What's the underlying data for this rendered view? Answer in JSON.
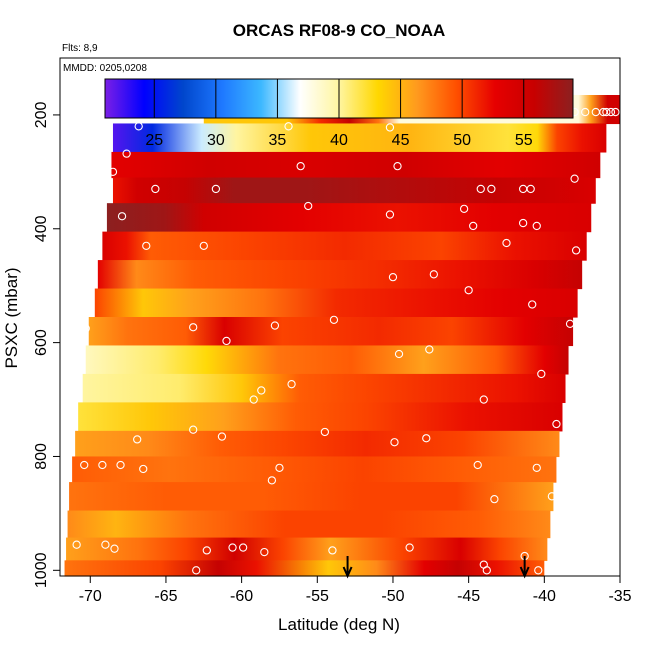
{
  "chart_data": {
    "type": "heatmap",
    "title": "ORCAS RF08-9 CO_NOAA",
    "flights_label": "Flts: 8,9",
    "dates_label": "MMDD: 0205,0208",
    "xlabel": "Latitude (deg N)",
    "ylabel": "PSXC (mbar)",
    "xlim": [
      -72.0,
      -35.0
    ],
    "ylim": [
      1010,
      100
    ],
    "x_ticks": [
      -70,
      -65,
      -60,
      -55,
      -50,
      -45,
      -40,
      -35
    ],
    "x_tick_labels": [
      "-70",
      "-65",
      "-60",
      "-55",
      "-50",
      "-45",
      "-40",
      "-35"
    ],
    "y_ticks": [
      200,
      400,
      600,
      800,
      1000
    ],
    "y_tick_labels": [
      "200",
      "400",
      "600",
      "800",
      "1000"
    ],
    "colorbar": {
      "min": 21,
      "max": 59,
      "ticks": [
        25,
        30,
        35,
        40,
        45,
        50,
        55
      ],
      "tick_labels": [
        "25",
        "30",
        "35",
        "40",
        "45",
        "50",
        "55"
      ],
      "colors": [
        "#7b1fe6",
        "#0000ff",
        "#0046cc",
        "#1e78ff",
        "#3cb8ff",
        "#ffffff",
        "#fff5a0",
        "#ffd700",
        "#ff9a1e",
        "#ff5000",
        "#e60000",
        "#c80000",
        "#8c2020"
      ]
    },
    "markers_latitude": [
      -53.0,
      -41.3
    ],
    "bands": [
      {
        "p": 190,
        "start": -62.5,
        "end": -34.9,
        "stops": [
          [
            0,
            44
          ],
          [
            0.2,
            44
          ],
          [
            0.28,
            51
          ],
          [
            0.35,
            56
          ],
          [
            0.42,
            48
          ],
          [
            0.47,
            38
          ],
          [
            0.62,
            38
          ],
          [
            0.9,
            38
          ],
          [
            0.93,
            46
          ],
          [
            0.97,
            55
          ],
          [
            1,
            55
          ]
        ]
      },
      {
        "p": 240,
        "start": -68.5,
        "end": -35.9,
        "stops": [
          [
            0,
            22
          ],
          [
            0.08,
            26
          ],
          [
            0.18,
            36
          ],
          [
            0.25,
            40
          ],
          [
            0.4,
            44
          ],
          [
            0.6,
            45
          ],
          [
            0.8,
            42
          ],
          [
            0.86,
            43
          ],
          [
            0.9,
            50
          ],
          [
            0.95,
            52
          ],
          [
            1,
            54
          ]
        ]
      },
      {
        "p": 290,
        "start": -68.6,
        "end": -36.3,
        "stops": [
          [
            0,
            53
          ],
          [
            0.2,
            55
          ],
          [
            0.4,
            54
          ],
          [
            0.6,
            55
          ],
          [
            0.8,
            53
          ],
          [
            1,
            55
          ]
        ]
      },
      {
        "p": 330,
        "start": -68.5,
        "end": -36.6,
        "stops": [
          [
            0,
            52
          ],
          [
            0.05,
            55
          ],
          [
            0.15,
            56
          ],
          [
            0.25,
            58
          ],
          [
            0.4,
            58
          ],
          [
            0.6,
            57
          ],
          [
            0.8,
            56
          ],
          [
            1,
            54
          ]
        ]
      },
      {
        "p": 380,
        "start": -68.9,
        "end": -36.9,
        "stops": [
          [
            0,
            59
          ],
          [
            0.12,
            58
          ],
          [
            0.2,
            55
          ],
          [
            0.4,
            53
          ],
          [
            0.6,
            52
          ],
          [
            0.8,
            53
          ],
          [
            1,
            54
          ]
        ]
      },
      {
        "p": 430,
        "start": -69.2,
        "end": -37.2,
        "stops": [
          [
            0,
            54
          ],
          [
            0.05,
            52
          ],
          [
            0.1,
            49
          ],
          [
            0.3,
            50
          ],
          [
            0.5,
            51
          ],
          [
            0.7,
            50
          ],
          [
            0.85,
            52
          ],
          [
            1,
            54
          ]
        ]
      },
      {
        "p": 480,
        "start": -69.5,
        "end": -37.5,
        "stops": [
          [
            0,
            53
          ],
          [
            0.08,
            47
          ],
          [
            0.2,
            49
          ],
          [
            0.4,
            50
          ],
          [
            0.6,
            51
          ],
          [
            0.75,
            52
          ],
          [
            0.9,
            54
          ],
          [
            1,
            56
          ]
        ]
      },
      {
        "p": 530,
        "start": -69.7,
        "end": -37.8,
        "stops": [
          [
            0,
            50
          ],
          [
            0.1,
            44
          ],
          [
            0.2,
            46
          ],
          [
            0.35,
            48
          ],
          [
            0.5,
            51
          ],
          [
            0.7,
            52
          ],
          [
            0.85,
            53
          ],
          [
            1,
            54
          ]
        ]
      },
      {
        "p": 580,
        "start": -70.1,
        "end": -38.1,
        "stops": [
          [
            0,
            46
          ],
          [
            0.08,
            48
          ],
          [
            0.2,
            49
          ],
          [
            0.28,
            54
          ],
          [
            0.4,
            50
          ],
          [
            0.6,
            51
          ],
          [
            0.75,
            50
          ],
          [
            0.9,
            53
          ],
          [
            1,
            56
          ]
        ]
      },
      {
        "p": 630,
        "start": -70.3,
        "end": -38.4,
        "stops": [
          [
            0,
            39
          ],
          [
            0.15,
            41
          ],
          [
            0.25,
            43
          ],
          [
            0.4,
            48
          ],
          [
            0.55,
            49
          ],
          [
            0.7,
            46
          ],
          [
            0.85,
            49
          ],
          [
            0.95,
            53
          ],
          [
            1,
            56
          ]
        ]
      },
      {
        "p": 680,
        "start": -70.5,
        "end": -38.6,
        "stops": [
          [
            0,
            40
          ],
          [
            0.2,
            41
          ],
          [
            0.33,
            44
          ],
          [
            0.45,
            49
          ],
          [
            0.6,
            50
          ],
          [
            0.75,
            51
          ],
          [
            0.9,
            52
          ],
          [
            1,
            54
          ]
        ]
      },
      {
        "p": 730,
        "start": -70.8,
        "end": -38.8,
        "stops": [
          [
            0,
            42
          ],
          [
            0.15,
            44
          ],
          [
            0.3,
            46
          ],
          [
            0.45,
            49
          ],
          [
            0.6,
            50
          ],
          [
            0.8,
            52
          ],
          [
            1,
            54
          ]
        ]
      },
      {
        "p": 780,
        "start": -71.0,
        "end": -39.0,
        "stops": [
          [
            0,
            46
          ],
          [
            0.15,
            47
          ],
          [
            0.3,
            49
          ],
          [
            0.45,
            50
          ],
          [
            0.6,
            51
          ],
          [
            0.8,
            50
          ],
          [
            1,
            47
          ]
        ]
      },
      {
        "p": 820,
        "start": -71.2,
        "end": -39.2,
        "stops": [
          [
            0,
            49
          ],
          [
            0.2,
            48
          ],
          [
            0.4,
            49
          ],
          [
            0.6,
            50
          ],
          [
            0.8,
            49
          ],
          [
            1,
            48
          ]
        ]
      },
      {
        "p": 870,
        "start": -71.4,
        "end": -39.4,
        "stops": [
          [
            0,
            48
          ],
          [
            0.2,
            49
          ],
          [
            0.4,
            49
          ],
          [
            0.6,
            50
          ],
          [
            0.8,
            50
          ],
          [
            1,
            46
          ]
        ]
      },
      {
        "p": 920,
        "start": -71.5,
        "end": -39.6,
        "stops": [
          [
            0,
            47
          ],
          [
            0.1,
            45
          ],
          [
            0.25,
            48
          ],
          [
            0.45,
            50
          ],
          [
            0.65,
            50
          ],
          [
            0.85,
            49
          ],
          [
            1,
            47
          ]
        ]
      },
      {
        "p": 965,
        "start": -71.6,
        "end": -39.8,
        "stops": [
          [
            0,
            46
          ],
          [
            0.15,
            48
          ],
          [
            0.25,
            50
          ],
          [
            0.35,
            55
          ],
          [
            0.45,
            50
          ],
          [
            0.55,
            46
          ],
          [
            0.7,
            50
          ],
          [
            0.82,
            54
          ],
          [
            0.9,
            50
          ],
          [
            1,
            47
          ]
        ]
      },
      {
        "p": 1000,
        "start": -71.7,
        "end": -40.0,
        "stops": [
          [
            0,
            48
          ],
          [
            0.2,
            50
          ],
          [
            0.32,
            56
          ],
          [
            0.4,
            52
          ],
          [
            0.55,
            44
          ],
          [
            0.65,
            47
          ],
          [
            0.75,
            53
          ],
          [
            0.82,
            56
          ],
          [
            0.9,
            52
          ],
          [
            1,
            49
          ]
        ]
      }
    ],
    "points": [
      [
        -62.3,
        195
      ],
      [
        -57.6,
        195
      ],
      [
        -51.1,
        195
      ],
      [
        -38.0,
        195
      ],
      [
        -37.3,
        195
      ],
      [
        -36.6,
        195
      ],
      [
        -36.1,
        195
      ],
      [
        -35.9,
        195
      ],
      [
        -35.6,
        195
      ],
      [
        -35.3,
        195
      ],
      [
        -66.8,
        220
      ],
      [
        -56.9,
        220
      ],
      [
        -50.2,
        222
      ],
      [
        -68.8,
        260
      ],
      [
        -67.6,
        268
      ],
      [
        -68.5,
        300
      ],
      [
        -61.7,
        330
      ],
      [
        -56.1,
        290
      ],
      [
        -49.7,
        290
      ],
      [
        -44.2,
        330
      ],
      [
        -43.5,
        330
      ],
      [
        -41.4,
        330
      ],
      [
        -40.9,
        330
      ],
      [
        -38.0,
        312
      ],
      [
        -65.7,
        330
      ],
      [
        -67.9,
        378
      ],
      [
        -55.6,
        360
      ],
      [
        -50.2,
        375
      ],
      [
        -45.3,
        365
      ],
      [
        -44.7,
        395
      ],
      [
        -41.4,
        390
      ],
      [
        -40.5,
        395
      ],
      [
        -66.3,
        430
      ],
      [
        -62.5,
        430
      ],
      [
        -42.5,
        425
      ],
      [
        -37.9,
        438
      ],
      [
        -47.3,
        480
      ],
      [
        -50.0,
        485
      ],
      [
        -45.0,
        508
      ],
      [
        -37.4,
        520
      ],
      [
        -40.8,
        533
      ],
      [
        -70.3,
        575
      ],
      [
        -63.2,
        573
      ],
      [
        -61.0,
        597
      ],
      [
        -57.8,
        570
      ],
      [
        -53.9,
        560
      ],
      [
        -38.3,
        567
      ],
      [
        -49.6,
        620
      ],
      [
        -47.6,
        612
      ],
      [
        -40.2,
        655
      ],
      [
        -58.7,
        684
      ],
      [
        -56.7,
        673
      ],
      [
        -44.0,
        700
      ],
      [
        -59.2,
        700
      ],
      [
        -63.2,
        753
      ],
      [
        -54.5,
        757
      ],
      [
        -39.2,
        743
      ],
      [
        -66.9,
        770
      ],
      [
        -61.3,
        765
      ],
      [
        -49.9,
        775
      ],
      [
        -47.8,
        768
      ],
      [
        -70.4,
        815
      ],
      [
        -69.2,
        815
      ],
      [
        -68.0,
        815
      ],
      [
        -66.5,
        822
      ],
      [
        -57.5,
        820
      ],
      [
        -58.0,
        842
      ],
      [
        -44.4,
        815
      ],
      [
        -40.5,
        820
      ],
      [
        -43.3,
        875
      ],
      [
        -39.5,
        870
      ],
      [
        -70.9,
        955
      ],
      [
        -69.0,
        955
      ],
      [
        -68.4,
        962
      ],
      [
        -62.3,
        965
      ],
      [
        -60.6,
        960
      ],
      [
        -59.9,
        960
      ],
      [
        -58.5,
        968
      ],
      [
        -54.0,
        965
      ],
      [
        -48.9,
        960
      ],
      [
        -63.0,
        1000
      ],
      [
        -44.0,
        990
      ],
      [
        -41.3,
        975
      ],
      [
        -40.4,
        1000
      ],
      [
        -43.8,
        1000
      ]
    ]
  }
}
